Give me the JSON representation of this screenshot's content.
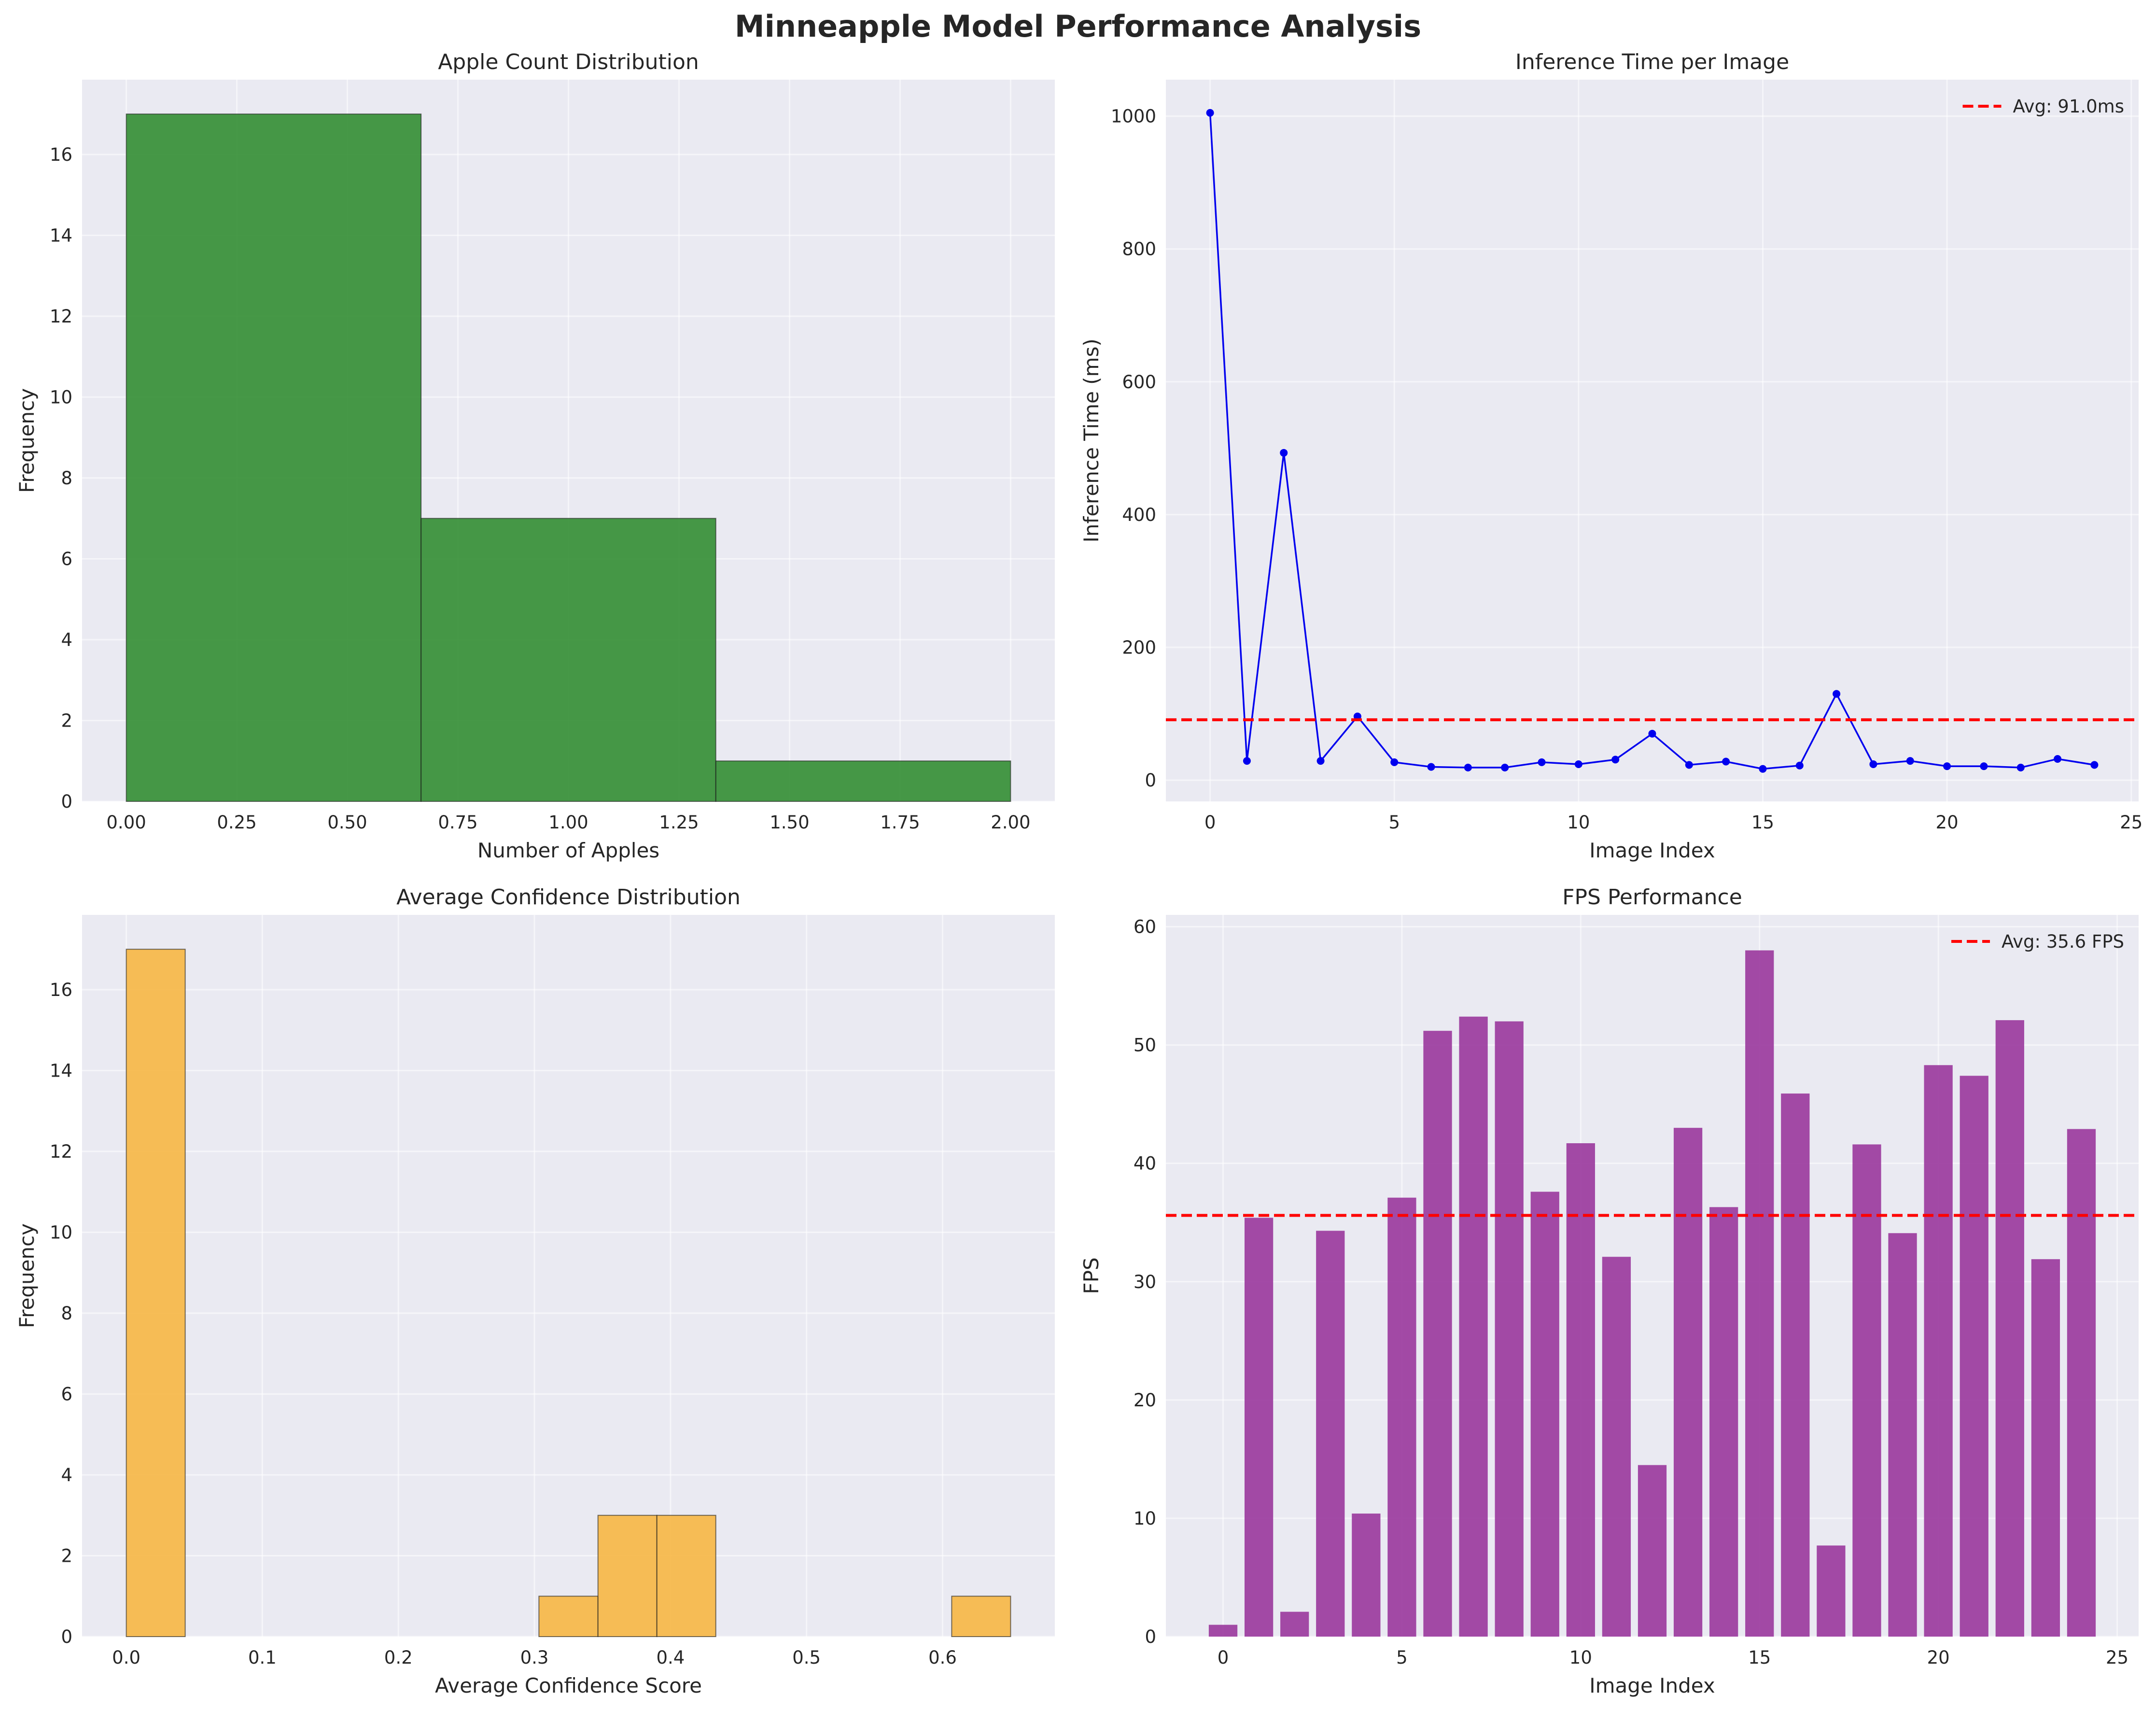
{
  "figure_title": "Minneapple Model Performance Analysis",
  "colors": {
    "background": "#ffffff",
    "plot_background": "#eaeaf2",
    "grid": "#ffffff",
    "apple_hist": "#2e8b2e",
    "confidence_hist": "#f7b53f",
    "inference_line": "#0000ee",
    "fps_bar": "#9b3b9e",
    "average_line": "#ff0000"
  },
  "chart_data": [
    {
      "id": "apple_count",
      "type": "bar",
      "title": "Apple Count Distribution",
      "xlabel": "Number of Apples",
      "ylabel": "Frequency",
      "bins": [
        {
          "x0": 0.0,
          "x1": 0.6667,
          "value": 17
        },
        {
          "x0": 0.6667,
          "x1": 1.3333,
          "value": 7
        },
        {
          "x0": 1.3333,
          "x1": 2.0,
          "value": 1
        }
      ],
      "xlim": [
        -0.1,
        2.1
      ],
      "ylim": [
        0,
        17.85
      ],
      "xticks": [
        0.0,
        0.25,
        0.5,
        0.75,
        1.0,
        1.25,
        1.5,
        1.75,
        2.0
      ],
      "xtick_labels": [
        "0.00",
        "0.25",
        "0.50",
        "0.75",
        "1.00",
        "1.25",
        "1.50",
        "1.75",
        "2.00"
      ],
      "yticks": [
        0,
        2,
        4,
        6,
        8,
        10,
        12,
        14,
        16
      ],
      "ytick_labels": [
        "0",
        "2",
        "4",
        "6",
        "8",
        "10",
        "12",
        "14",
        "16"
      ],
      "grid": true
    },
    {
      "id": "inference_time",
      "type": "line",
      "title": "Inference Time per Image",
      "xlabel": "Image Index",
      "ylabel": "Inference Time (ms)",
      "x": [
        0,
        1,
        2,
        3,
        4,
        5,
        6,
        7,
        8,
        9,
        10,
        11,
        12,
        13,
        14,
        15,
        16,
        17,
        18,
        19,
        20,
        21,
        22,
        23,
        24
      ],
      "values": [
        1005,
        29,
        493,
        29,
        96,
        27,
        20,
        19,
        19,
        27,
        24,
        31,
        70,
        23,
        28,
        17,
        22,
        130,
        24,
        29,
        21,
        21,
        19,
        32,
        23
      ],
      "average": 91.0,
      "legend": [
        "Avg: 91.0ms"
      ],
      "legend_position": "top-right",
      "xlim": [
        -1.2,
        25.2
      ],
      "ylim": [
        -32,
        1055
      ],
      "xticks": [
        0,
        5,
        10,
        15,
        20,
        25
      ],
      "xtick_labels": [
        "0",
        "5",
        "10",
        "15",
        "20",
        "25"
      ],
      "yticks": [
        0,
        200,
        400,
        600,
        800,
        1000
      ],
      "ytick_labels": [
        "0",
        "200",
        "400",
        "600",
        "800",
        "1000"
      ],
      "grid": true
    },
    {
      "id": "avg_confidence",
      "type": "bar",
      "title": "Average Confidence Distribution",
      "xlabel": "Average Confidence Score",
      "ylabel": "Frequency",
      "bins": [
        {
          "x0": 0.0,
          "x1": 0.0433,
          "value": 17
        },
        {
          "x0": 0.3033,
          "x1": 0.3467,
          "value": 1
        },
        {
          "x0": 0.3467,
          "x1": 0.39,
          "value": 3
        },
        {
          "x0": 0.39,
          "x1": 0.4333,
          "value": 3
        },
        {
          "x0": 0.6067,
          "x1": 0.65,
          "value": 1
        }
      ],
      "xlim": [
        -0.0325,
        0.6825
      ],
      "ylim": [
        0,
        17.85
      ],
      "xticks": [
        0.0,
        0.1,
        0.2,
        0.3,
        0.4,
        0.5,
        0.6
      ],
      "xtick_labels": [
        "0.0",
        "0.1",
        "0.2",
        "0.3",
        "0.4",
        "0.5",
        "0.6"
      ],
      "yticks": [
        0,
        2,
        4,
        6,
        8,
        10,
        12,
        14,
        16
      ],
      "ytick_labels": [
        "0",
        "2",
        "4",
        "6",
        "8",
        "10",
        "12",
        "14",
        "16"
      ],
      "grid": true
    },
    {
      "id": "fps",
      "type": "bar",
      "title": "FPS Performance",
      "xlabel": "Image Index",
      "ylabel": "FPS",
      "x": [
        0,
        1,
        2,
        3,
        4,
        5,
        6,
        7,
        8,
        9,
        10,
        11,
        12,
        13,
        14,
        15,
        16,
        17,
        18,
        19,
        20,
        21,
        22,
        23,
        24
      ],
      "values": [
        1.0,
        35.4,
        2.1,
        34.3,
        10.4,
        37.1,
        51.2,
        52.4,
        52.0,
        37.6,
        41.7,
        32.1,
        14.5,
        43.0,
        36.3,
        58.0,
        45.9,
        7.7,
        41.6,
        34.1,
        48.3,
        47.4,
        52.1,
        31.9,
        42.9
      ],
      "bar_width": 0.8,
      "average": 35.6,
      "legend": [
        "Avg: 35.6 FPS"
      ],
      "legend_position": "top-right",
      "xlim": [
        -1.6,
        25.6
      ],
      "ylim": [
        0,
        61
      ],
      "xticks": [
        0,
        5,
        10,
        15,
        20,
        25
      ],
      "xtick_labels": [
        "0",
        "5",
        "10",
        "15",
        "20",
        "25"
      ],
      "yticks": [
        0,
        10,
        20,
        30,
        40,
        50,
        60
      ],
      "ytick_labels": [
        "0",
        "10",
        "20",
        "30",
        "40",
        "50",
        "60"
      ],
      "grid": true
    }
  ]
}
